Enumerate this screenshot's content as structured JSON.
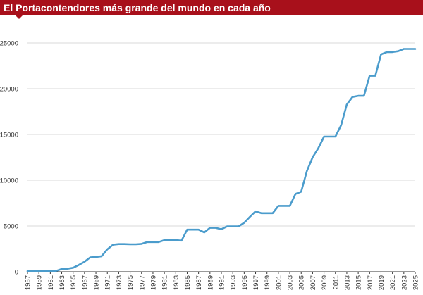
{
  "title": "El Portacontendores más grande del mundo en cada año",
  "colors": {
    "header_bg": "#a8101b",
    "header_text": "#ffffff",
    "line": "#4b9ccc",
    "grid": "#d9d9d9",
    "axis": "#333333"
  },
  "chart_data": {
    "type": "line",
    "title": "El Portacontendores más grande del mundo en cada año",
    "xlabel": "",
    "ylabel": "",
    "xlim": [
      1957,
      2025
    ],
    "ylim": [
      0,
      25000
    ],
    "grid": true,
    "x_ticks": [
      1957,
      1959,
      1961,
      1963,
      1965,
      1967,
      1969,
      1971,
      1973,
      1975,
      1977,
      1979,
      1981,
      1983,
      1985,
      1987,
      1989,
      1991,
      1993,
      1995,
      1997,
      1999,
      2001,
      2003,
      2005,
      2007,
      2009,
      2011,
      2013,
      2015,
      2017,
      2019,
      2021,
      2023,
      2025
    ],
    "y_ticks": [
      0,
      5000,
      10000,
      15000,
      20000,
      25000
    ],
    "series": [
      {
        "x": [
          1957,
          1958,
          1959,
          1960,
          1961,
          1962,
          1963,
          1964,
          1965,
          1966,
          1967,
          1968,
          1969,
          1970,
          1971,
          1972,
          1973,
          1974,
          1975,
          1976,
          1977,
          1978,
          1979,
          1980,
          1981,
          1982,
          1983,
          1984,
          1985,
          1986,
          1987,
          1988,
          1989,
          1990,
          1991,
          1992,
          1993,
          1994,
          1995,
          1996,
          1997,
          1998,
          1999,
          2000,
          2001,
          2002,
          2003,
          2004,
          2005,
          2006,
          2007,
          2008,
          2009,
          2010,
          2011,
          2012,
          2013,
          2014,
          2015,
          2016,
          2017,
          2018,
          2019,
          2020,
          2021,
          2022,
          2023,
          2024,
          2025
        ],
        "y": [
          58,
          58,
          58,
          70,
          80,
          90,
          300,
          330,
          440,
          750,
          1100,
          1580,
          1620,
          1700,
          2450,
          2950,
          3020,
          3020,
          3000,
          3000,
          3050,
          3250,
          3250,
          3250,
          3450,
          3450,
          3450,
          3400,
          4600,
          4600,
          4600,
          4300,
          4800,
          4800,
          4650,
          4950,
          4950,
          4950,
          5350,
          6000,
          6600,
          6400,
          6400,
          6400,
          7200,
          7200,
          7200,
          8500,
          8750,
          11000,
          12500,
          13500,
          14770,
          14770,
          14770,
          16020,
          18270,
          19100,
          19224,
          19224,
          21413,
          21413,
          23756,
          24000,
          24004,
          24100,
          24346,
          24346,
          24346
        ]
      }
    ]
  }
}
